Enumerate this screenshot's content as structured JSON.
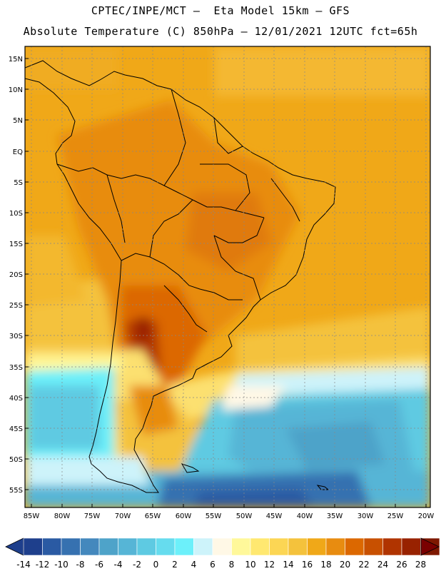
{
  "header": {
    "line1": "CPTEC/INPE/MCT –  Eta Model 15km – GFS",
    "line2": "Absolute Temperature (C) 850hPa – 12/01/2021 12UTC fct=65h"
  },
  "map": {
    "lat_labels": [
      "15N",
      "10N",
      "5N",
      "EQ",
      "5S",
      "10S",
      "15S",
      "20S",
      "25S",
      "30S",
      "35S",
      "40S",
      "45S",
      "50S",
      "55S"
    ],
    "lon_labels": [
      "85W",
      "80W",
      "75W",
      "70W",
      "65W",
      "60W",
      "55W",
      "50W",
      "45W",
      "40W",
      "35W",
      "30W",
      "25W",
      "20W"
    ]
  },
  "colorbar": {
    "labels": [
      "-14",
      "-12",
      "-10",
      "-8",
      "-6",
      "-4",
      "-2",
      "0",
      "2",
      "4",
      "6",
      "8",
      "10",
      "12",
      "14",
      "16",
      "18",
      "20",
      "22",
      "24",
      "26",
      "28"
    ],
    "colors": [
      "#7a0000",
      "#1e3f8c",
      "#2a5aa3",
      "#3671b0",
      "#4488bd",
      "#4ea3c9",
      "#56b5d6",
      "#5ecae2",
      "#66dcee",
      "#6cf0fa",
      "#cdf3fa",
      "#fff8e6",
      "#fff89a",
      "#ffe870",
      "#fcd654",
      "#f4c23c",
      "#f0a818",
      "#e88c10",
      "#dc6800",
      "#c85000",
      "#b03400",
      "#982200",
      "#7e1800",
      "#7a0000"
    ]
  }
}
